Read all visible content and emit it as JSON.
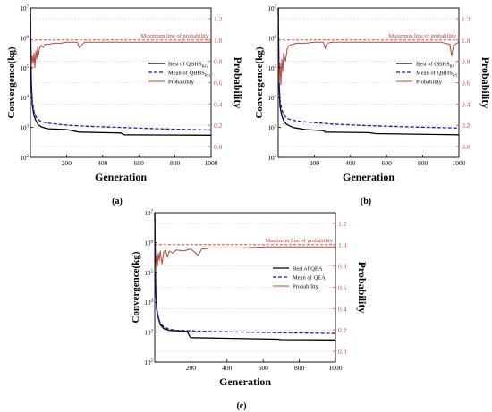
{
  "panels": [
    {
      "caption": "(a)",
      "best_base": "Best of QBHS",
      "best_sub": "RG",
      "mean_base": "Mean of QBHS",
      "mean_sub": "RG",
      "prob_label": "Probability"
    },
    {
      "caption": "(b)",
      "best_base": "Best of QBHS",
      "best_sub": "RY",
      "mean_base": "Mean of QBHS",
      "mean_sub": "RY",
      "prob_label": "Probability"
    },
    {
      "caption": "(c)",
      "best_base": "Best of QEA",
      "best_sub": "",
      "mean_base": "Mean of QEA",
      "mean_sub": "",
      "prob_label": "Probability"
    }
  ],
  "colors": {
    "best": "#000000",
    "mean": "#1a1aa8",
    "probability": "#b0483a",
    "max_line": "#cc3333",
    "right_axis": "#c0504d",
    "grid": "#c8c8c8"
  },
  "chart_data": [
    {
      "type": "line",
      "xlabel": "Generation",
      "ylabel_left": "Convergence(kg)",
      "ylabel_right": "Probability",
      "annotation": "Maximum line of probability",
      "xlim": [
        0,
        1000
      ],
      "xticks": [
        "200",
        "400",
        "600",
        "800",
        "1000"
      ],
      "ylim_left": [
        100,
        10000000
      ],
      "yscale_left": "log",
      "yticks_left": [
        {
          "base": "10",
          "exp": "2"
        },
        {
          "base": "10",
          "exp": "3"
        },
        {
          "base": "10",
          "exp": "4"
        },
        {
          "base": "10",
          "exp": "5"
        },
        {
          "base": "10",
          "exp": "6"
        },
        {
          "base": "10",
          "exp": "7"
        }
      ],
      "ylim_right": [
        -0.1,
        1.3
      ],
      "yticks_right": [
        "0.0",
        "0.2",
        "0.4",
        "0.6",
        "0.8",
        "1.0",
        "1.2"
      ],
      "max_line_value": 1.0,
      "series": [
        {
          "name": "Best of QBHSRG",
          "x": [
            0,
            5,
            10,
            20,
            30,
            45,
            60,
            80,
            100,
            200,
            270,
            500,
            520,
            700,
            1000
          ],
          "y": [
            10000000,
            30000,
            6000,
            2500,
            1700,
            1200,
            1050,
            950,
            900,
            850,
            700,
            650,
            570,
            560,
            550
          ]
        },
        {
          "name": "Mean of QBHSRG",
          "x": [
            0,
            5,
            10,
            20,
            30,
            50,
            80,
            120,
            200,
            300,
            500,
            700,
            1000
          ],
          "y": [
            10000000,
            40000,
            8000,
            3500,
            2300,
            1700,
            1450,
            1350,
            1200,
            1100,
            1000,
            900,
            820
          ]
        },
        {
          "name": "Probability",
          "x": [
            0,
            5,
            10,
            15,
            20,
            25,
            30,
            35,
            40,
            45,
            50,
            60,
            70,
            80,
            100,
            130,
            170,
            200,
            260,
            270,
            300,
            400,
            500,
            600,
            700,
            800,
            900,
            1000
          ],
          "y": [
            0.85,
            0.75,
            0.85,
            0.78,
            0.88,
            0.74,
            0.9,
            0.82,
            0.93,
            0.86,
            0.92,
            0.95,
            0.93,
            0.96,
            0.96,
            0.97,
            0.97,
            0.98,
            0.98,
            0.93,
            0.98,
            0.98,
            0.98,
            0.98,
            0.98,
            0.98,
            0.98,
            0.98
          ]
        }
      ]
    },
    {
      "type": "line",
      "xlabel": "Generation",
      "ylabel_left": "Convergence(kg)",
      "ylabel_right": "Probability",
      "annotation": "Maximum line of probability",
      "xlim": [
        0,
        1000
      ],
      "xticks": [
        "200",
        "400",
        "600",
        "800",
        "1000"
      ],
      "ylim_left": [
        100,
        10000000
      ],
      "yscale_left": "log",
      "yticks_left": [
        {
          "base": "10",
          "exp": "2"
        },
        {
          "base": "10",
          "exp": "3"
        },
        {
          "base": "10",
          "exp": "4"
        },
        {
          "base": "10",
          "exp": "5"
        },
        {
          "base": "10",
          "exp": "6"
        },
        {
          "base": "10",
          "exp": "7"
        }
      ],
      "ylim_right": [
        -0.1,
        1.3
      ],
      "yticks_right": [
        "0.0",
        "0.2",
        "0.4",
        "0.6",
        "0.8",
        "1.0",
        "1.2"
      ],
      "max_line_value": 1.0,
      "series": [
        {
          "name": "Best of QBHSRY",
          "x": [
            0,
            5,
            10,
            20,
            30,
            45,
            60,
            80,
            100,
            150,
            250,
            260,
            500,
            540,
            700,
            1000
          ],
          "y": [
            10000000,
            25000,
            5000,
            2500,
            1700,
            1300,
            1150,
            1000,
            950,
            850,
            780,
            700,
            670,
            620,
            600,
            570
          ]
        },
        {
          "name": "Mean of QBHSRY",
          "x": [
            0,
            5,
            10,
            20,
            30,
            50,
            80,
            120,
            200,
            300,
            500,
            700,
            1000
          ],
          "y": [
            10000000,
            35000,
            8000,
            4000,
            2600,
            2000,
            1750,
            1600,
            1450,
            1300,
            1150,
            1050,
            950
          ]
        },
        {
          "name": "Probability",
          "x": [
            0,
            5,
            10,
            15,
            20,
            25,
            30,
            40,
            50,
            60,
            80,
            100,
            150,
            200,
            250,
            260,
            270,
            300,
            400,
            500,
            600,
            700,
            800,
            900,
            950,
            960,
            970,
            1000
          ],
          "y": [
            0.85,
            0.6,
            0.78,
            0.58,
            0.82,
            0.7,
            0.88,
            0.8,
            0.92,
            0.95,
            0.96,
            0.97,
            0.97,
            0.98,
            0.98,
            0.92,
            0.97,
            0.98,
            0.98,
            0.98,
            0.98,
            0.98,
            0.98,
            0.98,
            0.96,
            0.85,
            0.95,
            0.98
          ]
        }
      ]
    },
    {
      "type": "line",
      "xlabel": "Generation",
      "ylabel_left": "Convergence(kg)",
      "ylabel_right": "Probability",
      "annotation": "Maximum line of probability",
      "xlim": [
        0,
        1000
      ],
      "xticks": [
        "200",
        "400",
        "600",
        "800",
        "1000"
      ],
      "ylim_left": [
        100,
        10000000
      ],
      "yscale_left": "log",
      "yticks_left": [
        {
          "base": "10",
          "exp": "2"
        },
        {
          "base": "10",
          "exp": "3"
        },
        {
          "base": "10",
          "exp": "4"
        },
        {
          "base": "10",
          "exp": "5"
        },
        {
          "base": "10",
          "exp": "6"
        },
        {
          "base": "10",
          "exp": "7"
        }
      ],
      "ylim_right": [
        -0.1,
        1.3
      ],
      "yticks_right": [
        "0.0",
        "0.2",
        "0.4",
        "0.6",
        "0.8",
        "1.0",
        "1.2"
      ],
      "max_line_value": 1.0,
      "series": [
        {
          "name": "Best of QEA",
          "x": [
            0,
            5,
            10,
            20,
            30,
            50,
            80,
            120,
            180,
            195,
            200,
            400,
            680,
            700,
            1000
          ],
          "y": [
            10000000,
            30000,
            6000,
            3000,
            1800,
            1300,
            1150,
            1100,
            1050,
            700,
            650,
            620,
            580,
            560,
            550
          ]
        },
        {
          "name": "Mean of QEA",
          "x": [
            0,
            5,
            10,
            20,
            30,
            50,
            80,
            120,
            200,
            300,
            500,
            700,
            1000
          ],
          "y": [
            10000000,
            35000,
            7000,
            3200,
            2000,
            1500,
            1250,
            1150,
            1100,
            1050,
            1000,
            950,
            900
          ]
        },
        {
          "name": "Probability",
          "x": [
            0,
            5,
            10,
            15,
            20,
            25,
            30,
            40,
            50,
            60,
            70,
            80,
            100,
            120,
            160,
            200,
            240,
            260,
            280,
            300,
            400,
            500,
            600,
            700,
            800,
            900,
            1000
          ],
          "y": [
            0.85,
            0.75,
            0.9,
            0.8,
            0.92,
            0.85,
            0.94,
            0.82,
            0.93,
            0.95,
            0.88,
            0.94,
            0.92,
            0.95,
            0.94,
            0.96,
            0.9,
            0.96,
            0.96,
            0.97,
            0.97,
            0.97,
            0.98,
            0.98,
            0.98,
            0.98,
            0.98
          ]
        }
      ]
    }
  ]
}
